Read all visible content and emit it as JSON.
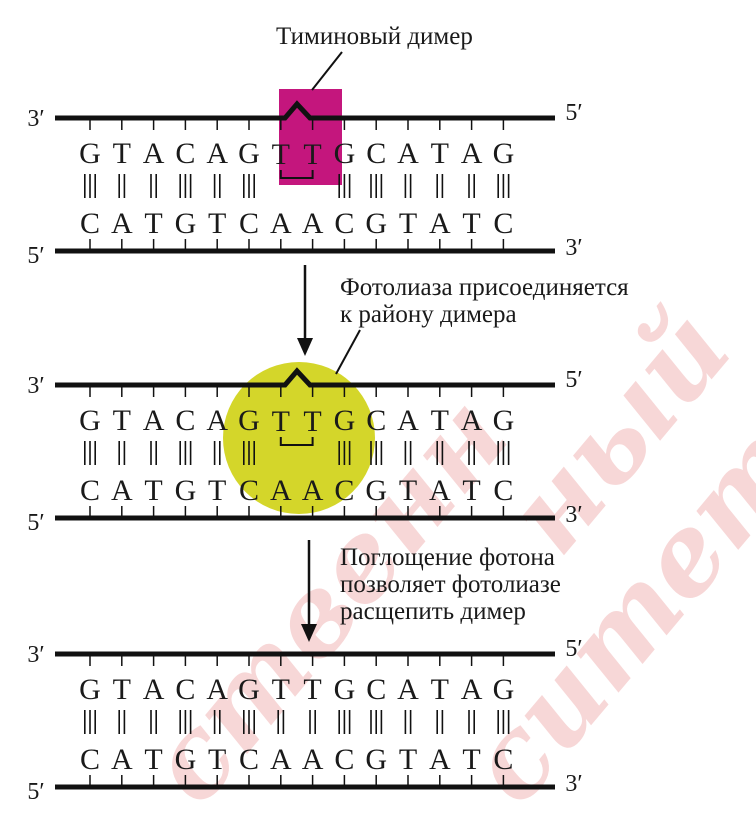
{
  "labels": {
    "dimer": "Тиминовый димер",
    "step1_line1": "Фотолиаза присоединяется",
    "step1_line2": "к району димера",
    "step2_line1": "Поглощение фотона",
    "step2_line2": "позволяет фотолиазе",
    "step2_line3": "расщепить димер"
  },
  "strands": {
    "top_left": "3′",
    "top_right": "5′",
    "bottom_left": "5′",
    "bottom_right": "3′"
  },
  "sequence": {
    "top": [
      "G",
      "T",
      "A",
      "C",
      "A",
      "G",
      "T",
      "T",
      "G",
      "C",
      "A",
      "T",
      "A",
      "G"
    ],
    "bottom": [
      "C",
      "A",
      "T",
      "G",
      "T",
      "C",
      "A",
      "A",
      "C",
      "G",
      "T",
      "A",
      "T",
      "C"
    ],
    "bonds": [
      3,
      2,
      2,
      3,
      2,
      3,
      2,
      2,
      3,
      3,
      2,
      2,
      2,
      3
    ]
  },
  "watermark": [
    "ный",
    "ситет",
    "ственн"
  ],
  "colors": {
    "dimer_highlight": "#c4167d",
    "photolyase": "#d4d62a",
    "strand": "#111111",
    "watermark": "#f1b7b7"
  }
}
